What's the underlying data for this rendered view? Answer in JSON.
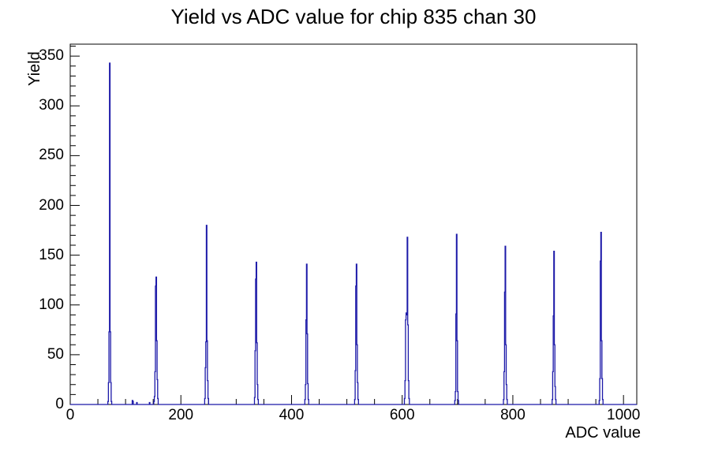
{
  "chart_data": {
    "type": "bar",
    "title": "Yield vs ADC value for chip 835 chan 30",
    "xlabel": "ADC value",
    "ylabel": "Yield",
    "xlim": [
      0,
      1024
    ],
    "ylim": [
      0,
      362
    ],
    "grid": false,
    "legend": "none",
    "line_color": "#1b18a8",
    "frame_color": "#000000",
    "bin_width": 1,
    "x_ticks": {
      "major": [
        0,
        200,
        400,
        600,
        800,
        1000
      ],
      "secondary_step": 50
    },
    "y_ticks": {
      "major": [
        0,
        50,
        100,
        150,
        200,
        250,
        300,
        350
      ],
      "minor_step": 10
    },
    "peaks": [
      {
        "adc": 71,
        "yield": 343
      },
      {
        "adc": 155,
        "yield": 128
      },
      {
        "adc": 246,
        "yield": 180
      },
      {
        "adc": 336,
        "yield": 143
      },
      {
        "adc": 427,
        "yield": 141
      },
      {
        "adc": 517,
        "yield": 141
      },
      {
        "adc": 609,
        "yield": 168
      },
      {
        "adc": 698,
        "yield": 171
      },
      {
        "adc": 786,
        "yield": 159
      },
      {
        "adc": 874,
        "yield": 154
      },
      {
        "adc": 959,
        "yield": 173
      }
    ],
    "bins": [
      [
        68,
        3
      ],
      [
        69,
        22
      ],
      [
        70,
        73
      ],
      [
        71,
        343
      ],
      [
        72,
        73
      ],
      [
        73,
        22
      ],
      [
        74,
        3
      ],
      [
        112,
        4
      ],
      [
        113,
        3
      ],
      [
        120,
        2
      ],
      [
        143,
        2
      ],
      [
        151,
        3
      ],
      [
        152,
        8
      ],
      [
        153,
        33
      ],
      [
        154,
        119
      ],
      [
        155,
        128
      ],
      [
        156,
        64
      ],
      [
        157,
        25
      ],
      [
        158,
        6
      ],
      [
        243,
        6
      ],
      [
        244,
        37
      ],
      [
        245,
        63
      ],
      [
        246,
        180
      ],
      [
        247,
        64
      ],
      [
        248,
        24
      ],
      [
        249,
        6
      ],
      [
        333,
        7
      ],
      [
        334,
        54
      ],
      [
        335,
        126
      ],
      [
        336,
        143
      ],
      [
        337,
        62
      ],
      [
        338,
        20
      ],
      [
        339,
        5
      ],
      [
        424,
        5
      ],
      [
        425,
        20
      ],
      [
        426,
        85
      ],
      [
        427,
        141
      ],
      [
        428,
        71
      ],
      [
        429,
        21
      ],
      [
        430,
        5
      ],
      [
        514,
        5
      ],
      [
        515,
        34
      ],
      [
        516,
        119
      ],
      [
        517,
        141
      ],
      [
        518,
        60
      ],
      [
        519,
        22
      ],
      [
        520,
        5
      ],
      [
        604,
        6
      ],
      [
        605,
        24
      ],
      [
        606,
        85
      ],
      [
        607,
        92
      ],
      [
        608,
        90
      ],
      [
        609,
        168
      ],
      [
        610,
        80
      ],
      [
        611,
        24
      ],
      [
        612,
        6
      ],
      [
        695,
        4
      ],
      [
        696,
        13
      ],
      [
        697,
        91
      ],
      [
        698,
        171
      ],
      [
        699,
        64
      ],
      [
        700,
        13
      ],
      [
        701,
        4
      ],
      [
        783,
        5
      ],
      [
        784,
        33
      ],
      [
        785,
        113
      ],
      [
        786,
        159
      ],
      [
        787,
        60
      ],
      [
        788,
        20
      ],
      [
        789,
        5
      ],
      [
        871,
        5
      ],
      [
        872,
        33
      ],
      [
        873,
        89
      ],
      [
        874,
        154
      ],
      [
        875,
        60
      ],
      [
        876,
        18
      ],
      [
        877,
        5
      ],
      [
        956,
        4
      ],
      [
        957,
        26
      ],
      [
        958,
        144
      ],
      [
        959,
        173
      ],
      [
        960,
        64
      ],
      [
        961,
        26
      ],
      [
        962,
        5
      ]
    ]
  }
}
